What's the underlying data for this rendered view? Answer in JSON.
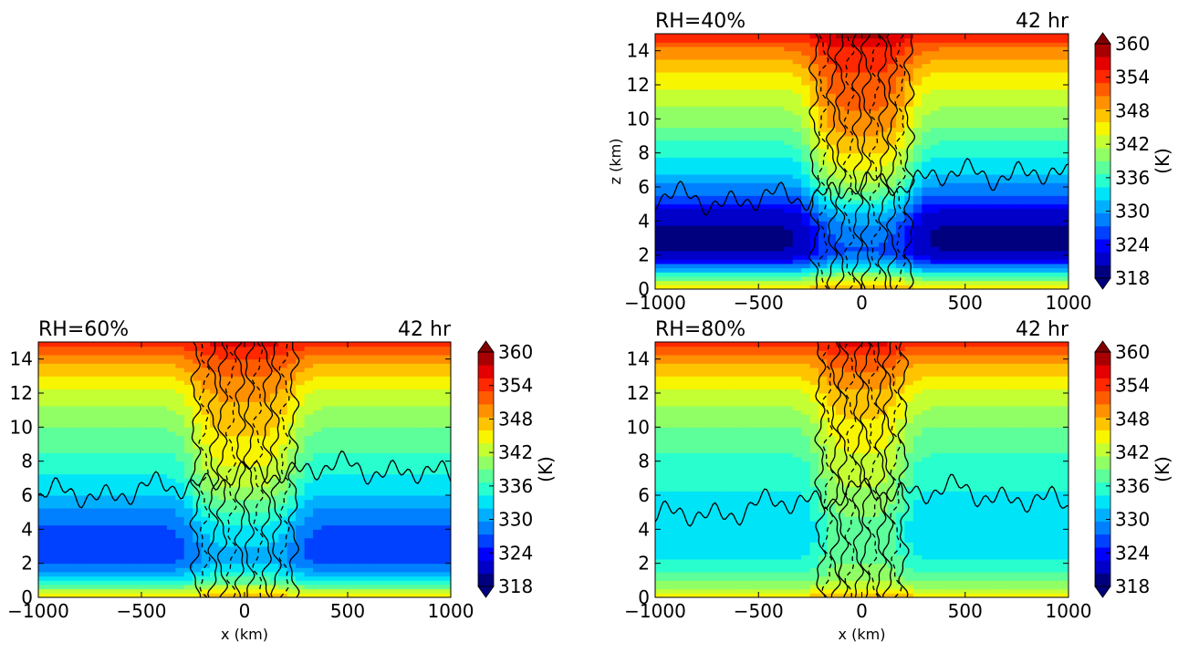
{
  "colormap": [
    "#00007f",
    "#0000c8",
    "#0000ff",
    "#0040ff",
    "#0080ff",
    "#00b0ff",
    "#00e4f8",
    "#29ffce",
    "#5cff9a",
    "#90ff66",
    "#c4ff33",
    "#f8f500",
    "#ffc400",
    "#ff9000",
    "#ff5c00",
    "#ff2800",
    "#e40000",
    "#a80000"
  ],
  "contour_color": "#000000",
  "chart_data": [
    {
      "type": "heatmap",
      "panel": "top-right",
      "title_left": "RH=40%",
      "title_right": "42 hr",
      "xlabel": "",
      "ylabel": "z (km)",
      "xlim": [
        -1000,
        1000
      ],
      "ylim": [
        0,
        15
      ],
      "xticks": [
        "−1000",
        "−500",
        "0",
        "500",
        "1000"
      ],
      "yticks": [
        "0",
        "2",
        "4",
        "6",
        "8",
        "10",
        "12",
        "14"
      ],
      "colorbar": {
        "label": "(K)",
        "ticks": [
          "360",
          "354",
          "348",
          "342",
          "336",
          "330",
          "324",
          "318"
        ],
        "range": [
          318,
          360
        ],
        "extend": "both"
      },
      "field_profile": [
        [
          0,
          346
        ],
        [
          0.5,
          340
        ],
        [
          1,
          333
        ],
        [
          1.5,
          326
        ],
        [
          2,
          321
        ],
        [
          2.5,
          320
        ],
        [
          3.5,
          320
        ],
        [
          4.5,
          322
        ],
        [
          5.5,
          327
        ],
        [
          6.5,
          331
        ],
        [
          8,
          335
        ],
        [
          10,
          340
        ],
        [
          12,
          344
        ],
        [
          14,
          350
        ],
        [
          15,
          355
        ]
      ],
      "core": {
        "half_width_km": 250,
        "anomaly_K": 8
      },
      "contour_levels_z_km": [
        6.0
      ]
    },
    {
      "type": "heatmap",
      "panel": "bottom-left",
      "title_left": "RH=60%",
      "title_right": "42 hr",
      "xlabel": "x (km)",
      "ylabel": "",
      "xlim": [
        -1000,
        1000
      ],
      "ylim": [
        0,
        15
      ],
      "xticks": [
        "−1000",
        "−500",
        "0",
        "500",
        "1000"
      ],
      "yticks": [
        "0",
        "2",
        "4",
        "6",
        "8",
        "10",
        "12",
        "14"
      ],
      "colorbar": {
        "label": "(K)",
        "ticks": [
          "360",
          "354",
          "348",
          "342",
          "336",
          "330",
          "324",
          "318"
        ],
        "range": [
          318,
          360
        ],
        "extend": "both"
      },
      "field_profile": [
        [
          0,
          346
        ],
        [
          0.5,
          340
        ],
        [
          1,
          334
        ],
        [
          1.5,
          330
        ],
        [
          2,
          327
        ],
        [
          3,
          326
        ],
        [
          4,
          327
        ],
        [
          5,
          329
        ],
        [
          6,
          332
        ],
        [
          7.5,
          335
        ],
        [
          10,
          339
        ],
        [
          12,
          343
        ],
        [
          14,
          349
        ],
        [
          15,
          354
        ]
      ],
      "core": {
        "half_width_km": 260,
        "anomaly_K": 6
      },
      "contour_levels_z_km": [
        6.8
      ]
    },
    {
      "type": "heatmap",
      "panel": "bottom-right",
      "title_left": "RH=80%",
      "title_right": "42 hr",
      "xlabel": "x (km)",
      "ylabel": "",
      "xlim": [
        -1000,
        1000
      ],
      "ylim": [
        0,
        15
      ],
      "xticks": [
        "−1000",
        "−500",
        "0",
        "500",
        "1000"
      ],
      "yticks": [
        "0",
        "2",
        "4",
        "6",
        "8",
        "10",
        "12",
        "14"
      ],
      "colorbar": {
        "label": "(K)",
        "ticks": [
          "360",
          "354",
          "348",
          "342",
          "336",
          "330",
          "324",
          "318"
        ],
        "range": [
          318,
          360
        ],
        "extend": "both"
      },
      "field_profile": [
        [
          0,
          347
        ],
        [
          0.5,
          342
        ],
        [
          1,
          338
        ],
        [
          2,
          335
        ],
        [
          3,
          333
        ],
        [
          4,
          332
        ],
        [
          5,
          333
        ],
        [
          6,
          334
        ],
        [
          8,
          336
        ],
        [
          10,
          339
        ],
        [
          12,
          343
        ],
        [
          14,
          349
        ],
        [
          15,
          354
        ]
      ],
      "core": {
        "half_width_km": 220,
        "anomaly_K": 5
      },
      "contour_levels_z_km": [
        5.5
      ]
    }
  ]
}
